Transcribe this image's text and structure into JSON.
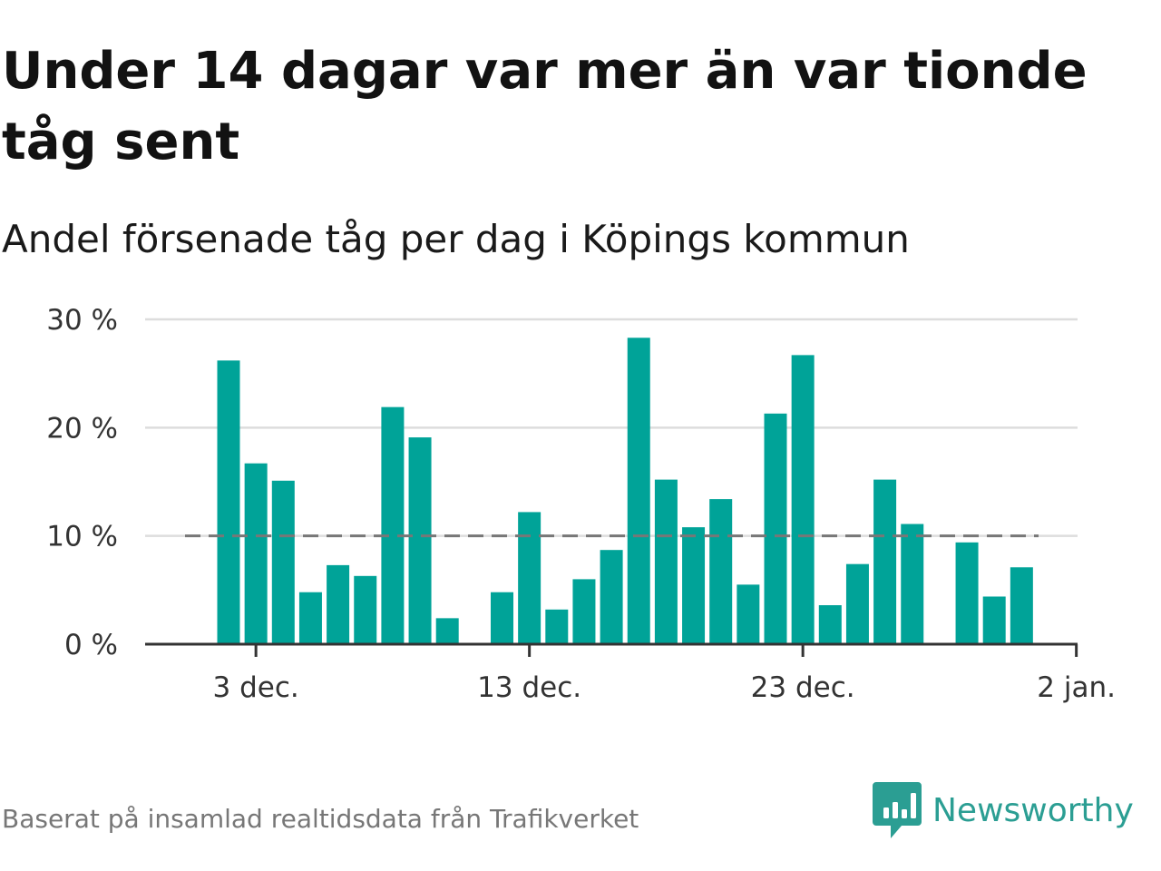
{
  "title": "Under 14 dagar var mer än var tionde tåg sent",
  "subtitle": "Andel försenade tåg per dag i Köpings kommun",
  "source": "Baserat på insamlad realtidsdata från Trafikverket",
  "brand": {
    "name": "Newsworthy",
    "icon": "newsworthy-logo-icon",
    "color": "#2b9e93"
  },
  "chart_data": {
    "type": "bar",
    "xlabel": "",
    "ylabel": "",
    "ylim": [
      0,
      30
    ],
    "y_ticks": [
      0,
      10,
      20,
      30
    ],
    "y_tick_labels": [
      "0 %",
      "10 %",
      "20 %",
      "30 %"
    ],
    "x_ticks": [
      "2023-12-03",
      "2023-12-13",
      "2023-12-23",
      "2024-01-02"
    ],
    "x_tick_labels": [
      "3 dec.",
      "13 dec.",
      "23 dec.",
      "2 jan."
    ],
    "x": [
      "2023-12-02",
      "2023-12-03",
      "2023-12-04",
      "2023-12-05",
      "2023-12-06",
      "2023-12-07",
      "2023-12-08",
      "2023-12-09",
      "2023-12-10",
      "2023-12-11",
      "2023-12-12",
      "2023-12-13",
      "2023-12-14",
      "2023-12-15",
      "2023-12-16",
      "2023-12-17",
      "2023-12-18",
      "2023-12-19",
      "2023-12-20",
      "2023-12-21",
      "2023-12-22",
      "2023-12-23",
      "2023-12-24",
      "2023-12-25",
      "2023-12-26",
      "2023-12-27",
      "2023-12-28",
      "2023-12-29",
      "2023-12-30",
      "2023-12-31",
      "2024-01-01"
    ],
    "values": [
      26.2,
      16.7,
      15.1,
      4.8,
      7.3,
      6.3,
      21.9,
      19.1,
      2.4,
      null,
      4.8,
      12.2,
      3.2,
      6.0,
      8.7,
      28.3,
      15.2,
      10.8,
      13.4,
      5.5,
      21.3,
      26.7,
      3.6,
      7.4,
      15.2,
      11.1,
      null,
      9.4,
      4.4,
      7.1,
      null
    ],
    "reference_line": {
      "value": 10,
      "style": "dashed",
      "color": "#777777"
    },
    "bar_color": "#00a398",
    "grid": true,
    "legend": "none"
  }
}
